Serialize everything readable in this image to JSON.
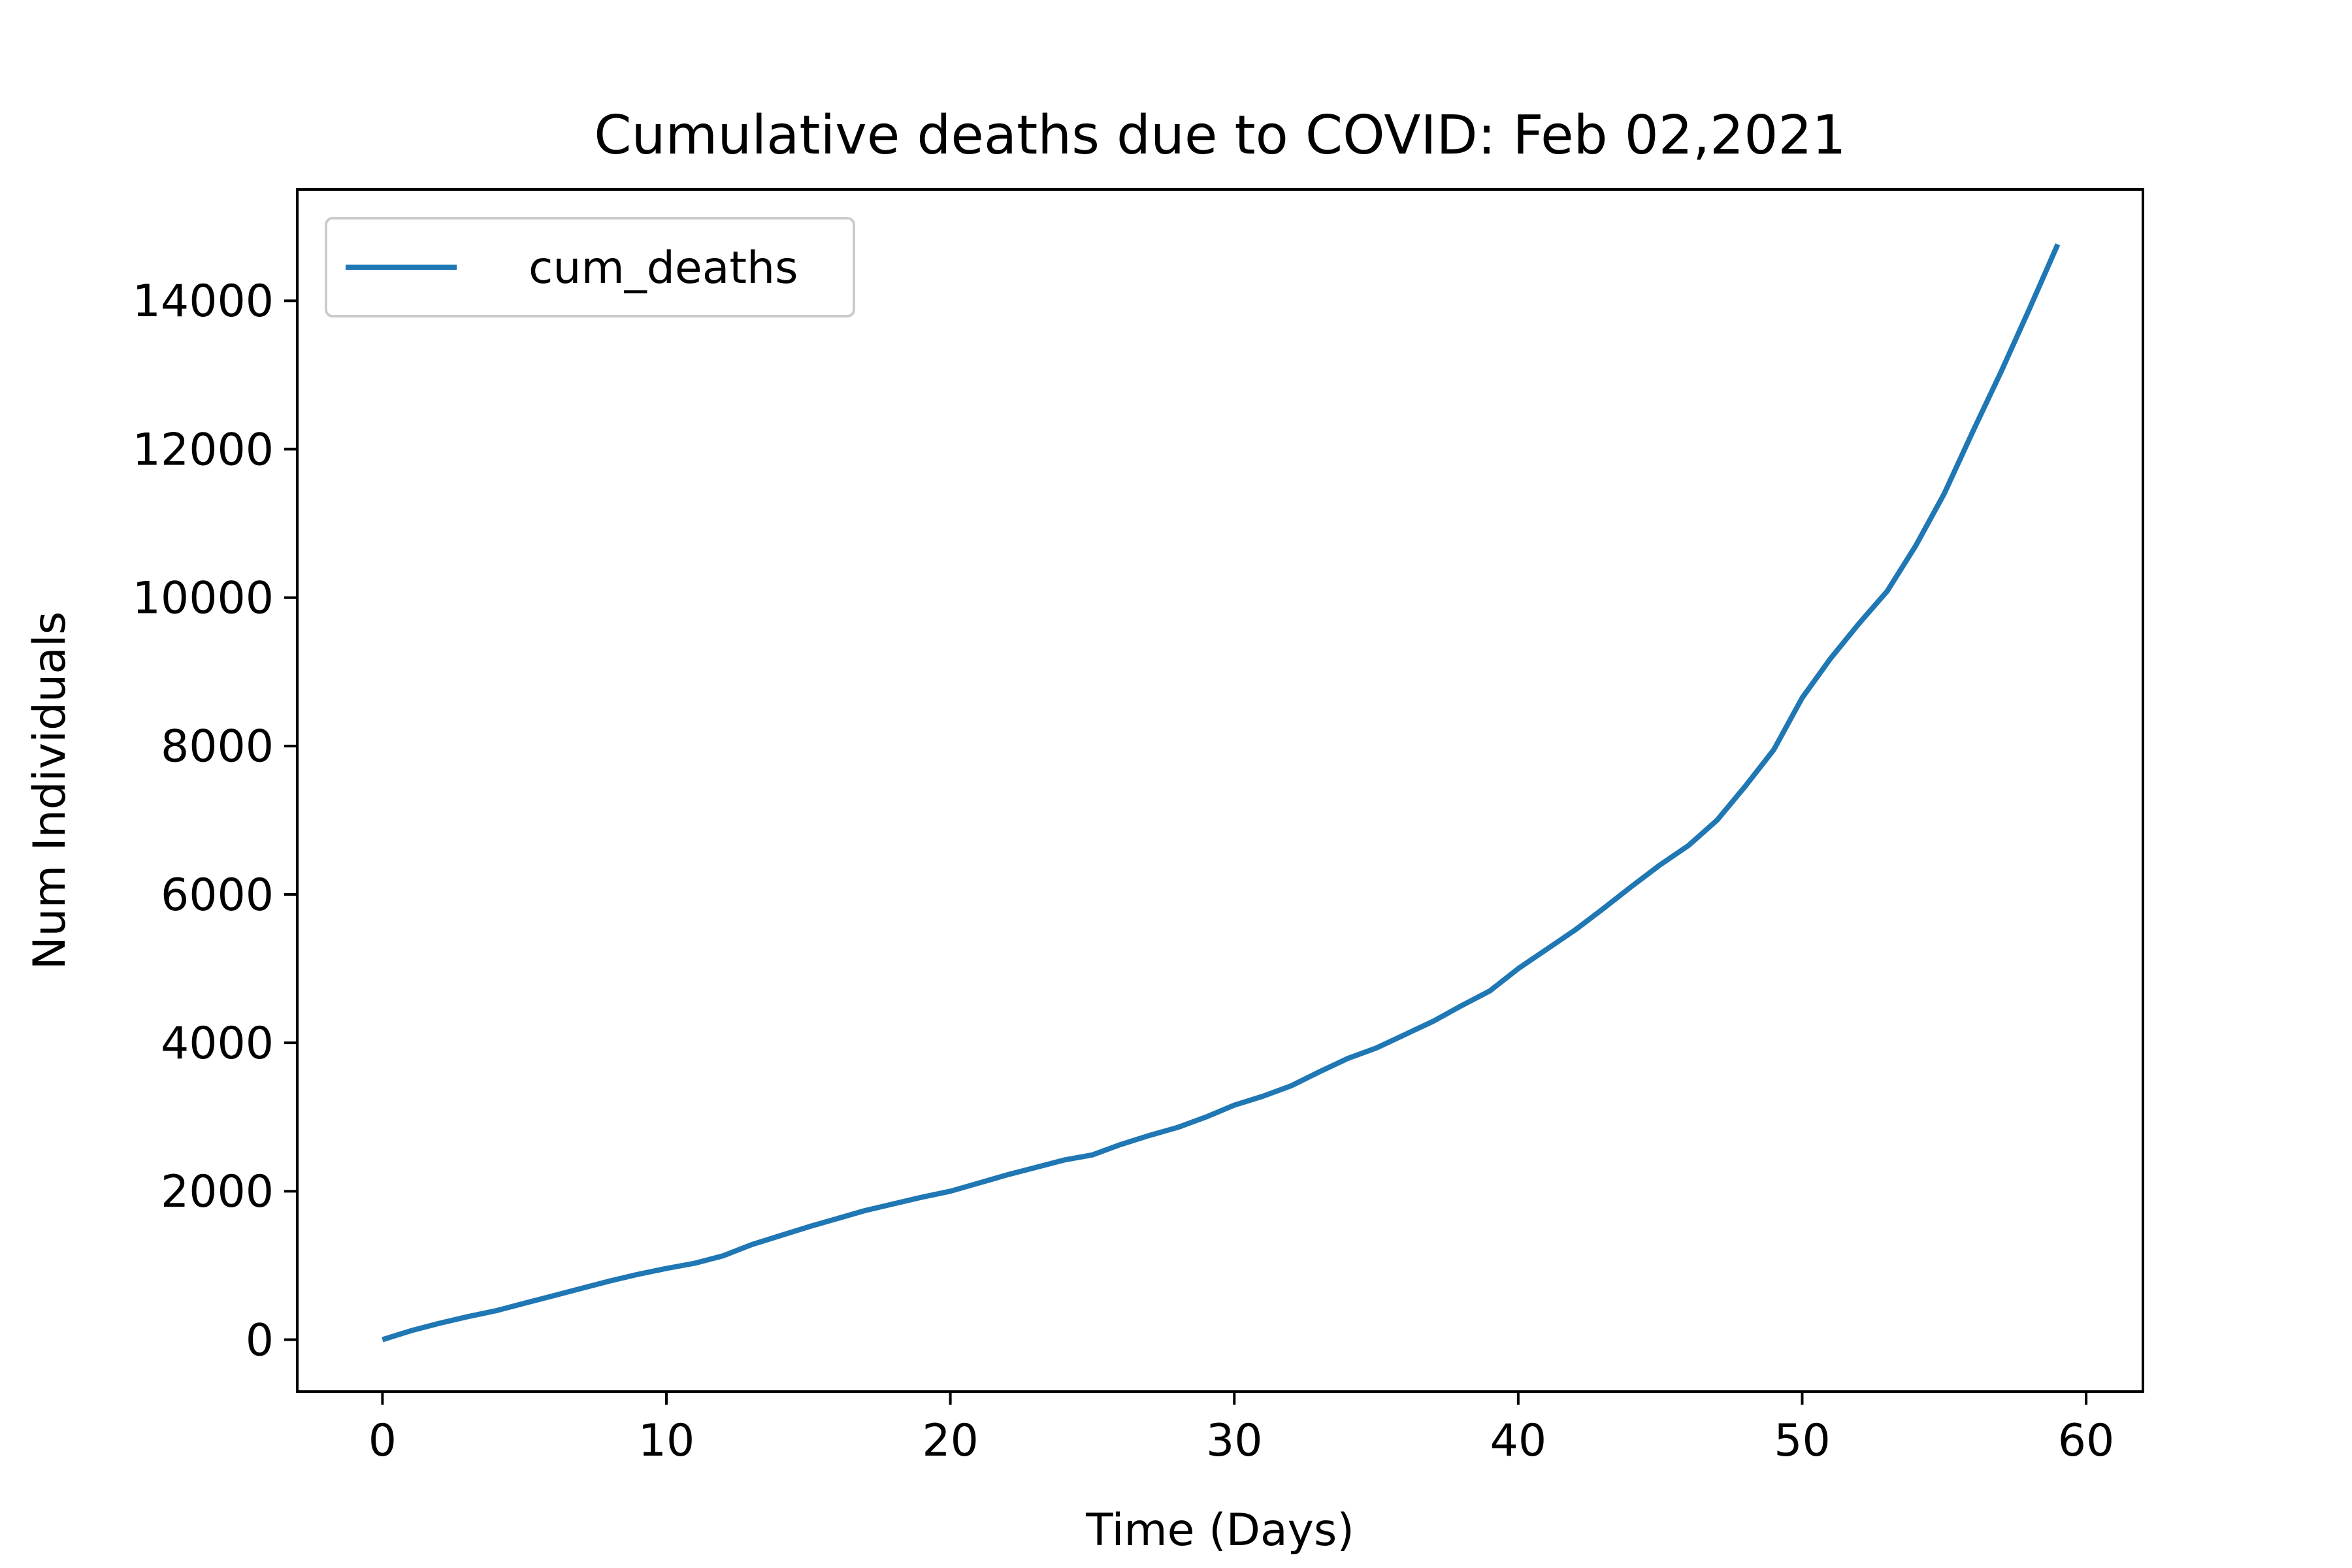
{
  "chart_data": {
    "type": "line",
    "title": "Cumulative deaths due to COVID: Feb 02,2021",
    "xlabel": "Time (Days)",
    "ylabel": "Num Individuals",
    "xlim": [
      -3,
      62
    ],
    "ylim": [
      -700,
      15500
    ],
    "x_ticks": [
      0,
      10,
      20,
      30,
      40,
      50,
      60
    ],
    "x_tick_labels": [
      "0",
      "10",
      "20",
      "30",
      "40",
      "50",
      "60"
    ],
    "y_ticks": [
      0,
      2000,
      4000,
      6000,
      8000,
      10000,
      12000,
      14000
    ],
    "y_tick_labels": [
      "0",
      "2000",
      "4000",
      "6000",
      "8000",
      "10000",
      "12000",
      "14000"
    ],
    "grid": false,
    "legend_position": "top-left",
    "series": [
      {
        "name": "cum_deaths",
        "color": "#1f77b4",
        "x": [
          0,
          1,
          2,
          3,
          4,
          5,
          6,
          7,
          8,
          9,
          10,
          11,
          12,
          13,
          14,
          15,
          16,
          17,
          18,
          19,
          20,
          21,
          22,
          23,
          24,
          25,
          26,
          27,
          28,
          29,
          30,
          31,
          32,
          33,
          34,
          35,
          36,
          37,
          38,
          39,
          40,
          41,
          42,
          43,
          44,
          45,
          46,
          47,
          48,
          49,
          50,
          51,
          52,
          53,
          54,
          55,
          56,
          57,
          58,
          59
        ],
        "y": [
          0,
          120,
          220,
          310,
          390,
          490,
          590,
          690,
          790,
          880,
          960,
          1030,
          1130,
          1280,
          1400,
          1520,
          1630,
          1740,
          1830,
          1920,
          2000,
          2110,
          2220,
          2320,
          2420,
          2490,
          2630,
          2750,
          2860,
          3000,
          3160,
          3280,
          3420,
          3610,
          3790,
          3930,
          4110,
          4290,
          4500,
          4700,
          5000,
          5260,
          5520,
          5810,
          6110,
          6400,
          6660,
          7000,
          7460,
          7950,
          8650,
          9180,
          9650,
          10090,
          10700,
          11400,
          12230,
          13040,
          13890,
          14760
        ]
      }
    ]
  }
}
